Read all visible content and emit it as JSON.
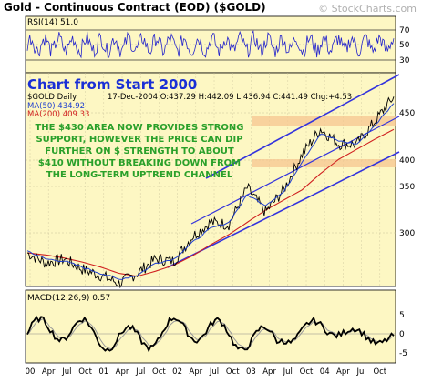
{
  "header": {
    "title": "Gold - Continuous Contract (EOD) ($GOLD)",
    "credit": "© StockCharts.com"
  },
  "rsi": {
    "label": "RSI(14) 51.0",
    "levels": [
      70,
      50,
      30
    ]
  },
  "price": {
    "chart_title": "Chart from Start 2000",
    "symbol_line": "$GOLD Daily",
    "ohlc_line": "17-Dec-2004 O:437.29 H:442.09 L:436.94 C:441.49 Chg:+4.53",
    "ma50_label": "MA(50) 434.92",
    "ma200_label": "MA(200) 409.33",
    "annotation": [
      "THE $430 AREA NOW PROVIDES STRONG",
      "SUPPORT, HOWEVER THE PRICE CAN DIP",
      "FURTHER ON $ STRENGTH TO ABOUT",
      "$410 WITHOUT BREAKING DOWN FROM",
      "THE LONG-TERM UPTREND CHANNEL"
    ],
    "y_ticks": [
      "450",
      "400",
      "350",
      "300"
    ]
  },
  "macd": {
    "label": "MACD(12,26,9) 0.57",
    "y_ticks": [
      "5",
      "0",
      "-5"
    ]
  },
  "x_axis": {
    "labels": [
      "00",
      "Apr",
      "Jul",
      "Oct",
      "01",
      "Apr",
      "Jul",
      "Oct",
      "02",
      "Apr",
      "Jul",
      "Oct",
      "03",
      "Apr",
      "Jul",
      "Oct",
      "04",
      "Apr",
      "Jul",
      "Oct"
    ]
  },
  "colors": {
    "panel_bg": "#fdf7c3",
    "price": "#000000",
    "ma50": "#1f3fd0",
    "ma200": "#d02020",
    "channel": "#3333dd",
    "rsi_line": "#2222cc",
    "annotation": "#2aa02a",
    "support_zone": "#f5c590"
  },
  "chart_data": {
    "type": "line",
    "x": [
      "2000-01",
      "2000-04",
      "2000-07",
      "2000-10",
      "2001-01",
      "2001-04",
      "2001-07",
      "2001-10",
      "2002-01",
      "2002-04",
      "2002-07",
      "2002-10",
      "2003-01",
      "2003-04",
      "2003-07",
      "2003-10",
      "2004-01",
      "2004-04",
      "2004-07",
      "2004-10",
      "2004-12"
    ],
    "series": [
      {
        "name": "$GOLD",
        "values": [
          288,
          278,
          282,
          272,
          266,
          258,
          268,
          282,
          280,
          304,
          318,
          316,
          352,
          328,
          350,
          385,
          410,
          395,
          395,
          418,
          441.49
        ]
      },
      {
        "name": "MA(50)",
        "values": [
          290,
          282,
          280,
          274,
          268,
          262,
          266,
          278,
          282,
          298,
          312,
          318,
          345,
          335,
          348,
          378,
          405,
          398,
          395,
          414,
          434.92
        ]
      },
      {
        "name": "MA(200)",
        "values": [
          288,
          286,
          283,
          279,
          274,
          268,
          265,
          270,
          276,
          285,
          296,
          306,
          318,
          330,
          340,
          350,
          366,
          380,
          390,
          400,
          409.33
        ]
      }
    ],
    "ylim": [
      255,
      465
    ],
    "ytick_labels": [
      "300",
      "350",
      "400",
      "450"
    ],
    "annotations": [
      "Chart from Start 2000"
    ],
    "rsi_levels": [
      30,
      50,
      70
    ],
    "macd_ticks": [
      -5,
      0,
      5
    ]
  }
}
